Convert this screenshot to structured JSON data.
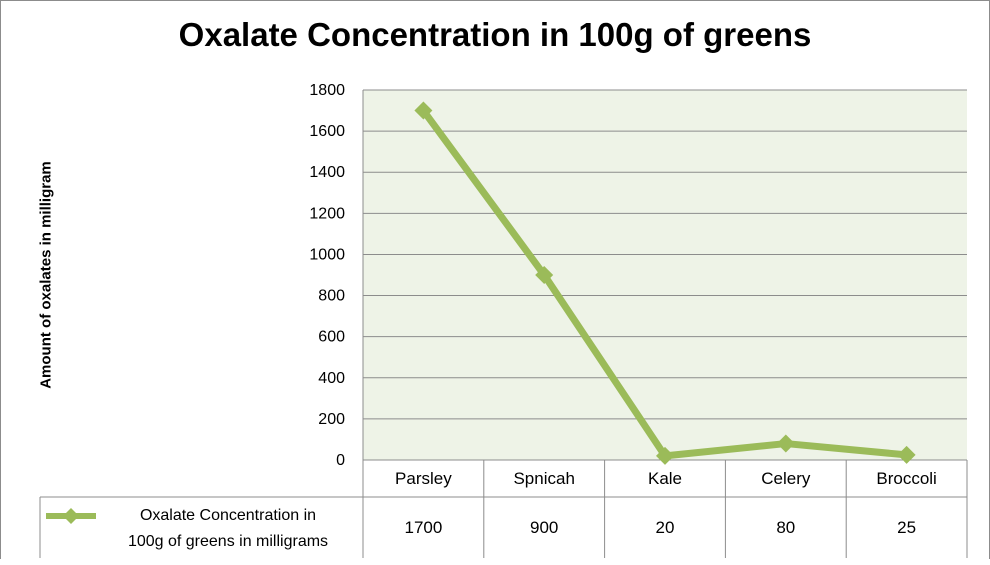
{
  "chart_data": {
    "type": "line",
    "title": "Oxalate Concentration in 100g of greens",
    "xlabel": "",
    "ylabel": "Amount of oxalates  in milligram",
    "categories": [
      "Parsley",
      "Spnicah",
      "Kale",
      "Celery",
      "Broccoli"
    ],
    "series": [
      {
        "name": "Oxalate Concentration in 100g of greens in milligrams",
        "name_lines": [
          "Oxalate Concentration in",
          "100g of greens in milligrams"
        ],
        "values": [
          1700,
          900,
          20,
          80,
          25
        ]
      }
    ],
    "ylim": [
      0,
      1800
    ],
    "yticks": [
      "0",
      "200",
      "400",
      "600",
      "800",
      "1000",
      "1200",
      "1400",
      "1600",
      "1800"
    ],
    "grid": true,
    "legend": "data-table",
    "colors": {
      "series": "#9bbb59",
      "plot_bg": "#eef3e7",
      "gridline": "#8c8c8c"
    }
  }
}
